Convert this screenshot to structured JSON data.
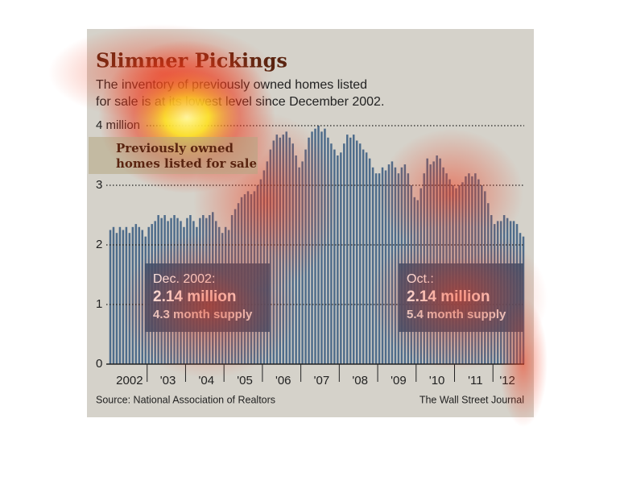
{
  "chart_data": {
    "type": "bar",
    "title": "Slimmer Pickings",
    "subtitle": [
      "The inventory of previously owned homes listed",
      "for sale is at its lowest level since December 2002."
    ],
    "series": [
      {
        "name": "Previously owned homes listed for sale",
        "color": "#4e6c8b",
        "values": [
          2.25,
          2.3,
          2.2,
          2.3,
          2.25,
          2.3,
          2.2,
          2.3,
          2.35,
          2.3,
          2.25,
          2.14,
          2.3,
          2.35,
          2.4,
          2.5,
          2.45,
          2.5,
          2.4,
          2.45,
          2.5,
          2.45,
          2.4,
          2.3,
          2.45,
          2.5,
          2.4,
          2.3,
          2.45,
          2.5,
          2.45,
          2.5,
          2.55,
          2.4,
          2.3,
          2.2,
          2.3,
          2.25,
          2.5,
          2.6,
          2.7,
          2.8,
          2.85,
          2.9,
          2.85,
          2.9,
          3.0,
          3.1,
          3.25,
          3.4,
          3.6,
          3.75,
          3.85,
          3.8,
          3.85,
          3.9,
          3.8,
          3.7,
          3.5,
          3.3,
          3.4,
          3.6,
          3.8,
          3.9,
          3.95,
          4.0,
          3.9,
          3.95,
          3.8,
          3.7,
          3.6,
          3.5,
          3.55,
          3.7,
          3.85,
          3.8,
          3.85,
          3.75,
          3.7,
          3.6,
          3.55,
          3.45,
          3.3,
          3.2,
          3.2,
          3.3,
          3.25,
          3.35,
          3.4,
          3.3,
          3.2,
          3.3,
          3.35,
          3.2,
          3.0,
          2.8,
          2.75,
          2.95,
          3.2,
          3.45,
          3.35,
          3.4,
          3.5,
          3.45,
          3.3,
          3.2,
          3.1,
          3.0,
          2.95,
          3.0,
          3.05,
          3.15,
          3.2,
          3.15,
          3.2,
          3.1,
          3.0,
          2.9,
          2.7,
          2.5,
          2.35,
          2.4,
          2.4,
          2.5,
          2.45,
          2.4,
          2.4,
          2.35,
          2.2,
          2.14
        ]
      }
    ],
    "categories": [
      null,
      null,
      null,
      null,
      null,
      null,
      "2002",
      null,
      null,
      null,
      null,
      null,
      null,
      null,
      null,
      null,
      null,
      null,
      "'03",
      null,
      null,
      null,
      null,
      null,
      null,
      null,
      null,
      null,
      null,
      null,
      "'04",
      null,
      null,
      null,
      null,
      null,
      null,
      null,
      null,
      null,
      null,
      null,
      "'05",
      null,
      null,
      null,
      null,
      null,
      null,
      null,
      null,
      null,
      null,
      null,
      "'06",
      null,
      null,
      null,
      null,
      null,
      null,
      null,
      null,
      null,
      null,
      null,
      "'07",
      null,
      null,
      null,
      null,
      null,
      null,
      null,
      null,
      null,
      null,
      null,
      "'08",
      null,
      null,
      null,
      null,
      null,
      null,
      null,
      null,
      null,
      null,
      null,
      "'09",
      null,
      null,
      null,
      null,
      null,
      null,
      null,
      null,
      null,
      null,
      null,
      "'10",
      null,
      null,
      null,
      null,
      null,
      null,
      null,
      null,
      null,
      null,
      null,
      "'11",
      null,
      null,
      null,
      null,
      null,
      null,
      null,
      null,
      null,
      "'12",
      null,
      null,
      null,
      null,
      null
    ],
    "ylim": [
      0,
      4.2
    ],
    "yticks": [
      0,
      1,
      2,
      3,
      {
        "value": 4,
        "label": "4 million"
      }
    ],
    "grid": true,
    "annotations": [
      {
        "date": "Dec. 2002:",
        "value": "2.14 million",
        "supply": "4.3 month supply"
      },
      {
        "date": "Oct.:",
        "value": "2.14 million",
        "supply": "5.4 month supply"
      }
    ],
    "source": "Source: National Association of Realtors",
    "credit": "The Wall Street Journal"
  }
}
